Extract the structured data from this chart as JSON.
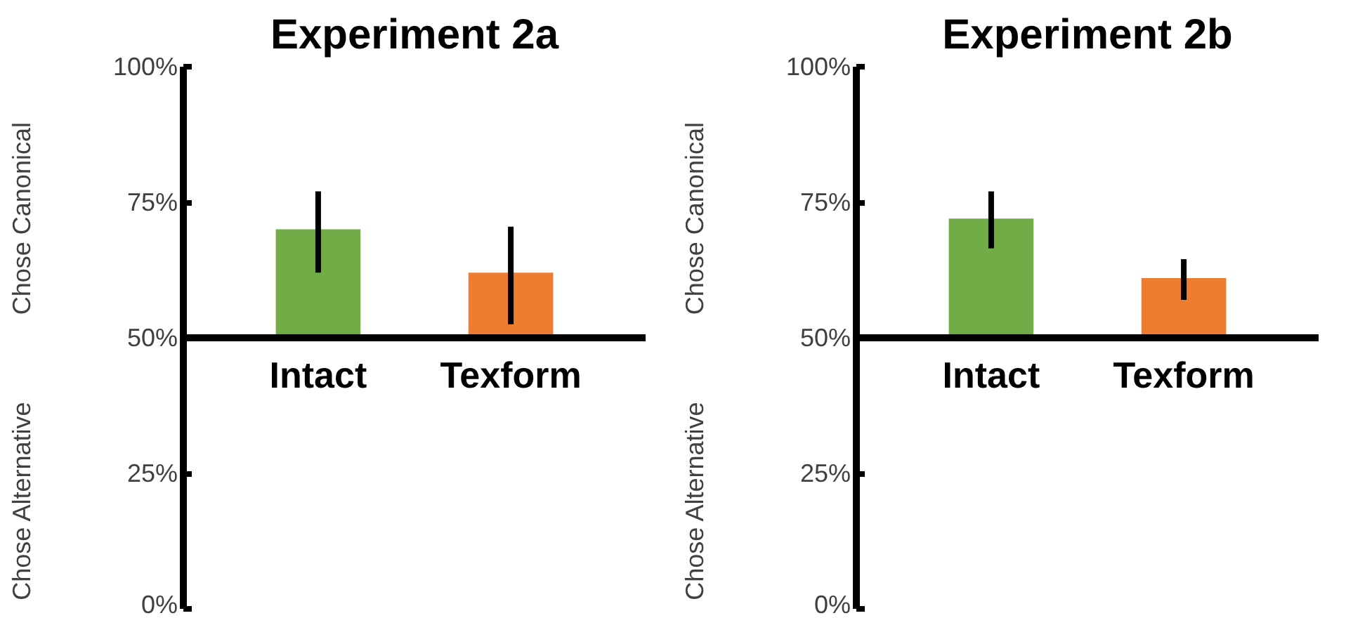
{
  "chart_data": [
    {
      "type": "bar",
      "title": "Experiment 2a",
      "ylabel": "Chose Canonical",
      "annotations": [
        "Chose Alternative"
      ],
      "categories": [
        "Intact",
        "Texform"
      ],
      "base": [
        50,
        50
      ],
      "values": [
        20,
        12
      ],
      "colors": [
        "#70ad47",
        "#ed7d31"
      ],
      "errors": [
        [
          62,
          77
        ],
        [
          52.5,
          70.5
        ]
      ],
      "ylim": [
        0,
        100
      ],
      "yticks": [
        {
          "value": 0,
          "label": "0%"
        },
        {
          "value": 25,
          "label": "25%"
        },
        {
          "value": 50,
          "label": "50%"
        },
        {
          "value": 75,
          "label": "75%"
        },
        {
          "value": 100,
          "label": "100%"
        }
      ],
      "grid": false
    },
    {
      "type": "bar",
      "title": "Experiment 2b",
      "ylabel": "Chose Canonical",
      "annotations": [
        "Chose Alternative"
      ],
      "categories": [
        "Intact",
        "Texform"
      ],
      "base": [
        50,
        50
      ],
      "values": [
        22,
        11
      ],
      "colors": [
        "#70ad47",
        "#ed7d31"
      ],
      "errors": [
        [
          66.5,
          77
        ],
        [
          57,
          64.5
        ]
      ],
      "ylim": [
        0,
        100
      ],
      "yticks": [
        {
          "value": 0,
          "label": "0%"
        },
        {
          "value": 25,
          "label": "25%"
        },
        {
          "value": 50,
          "label": "50%"
        },
        {
          "value": 75,
          "label": "75%"
        },
        {
          "value": 100,
          "label": "100%"
        }
      ],
      "grid": false
    }
  ]
}
